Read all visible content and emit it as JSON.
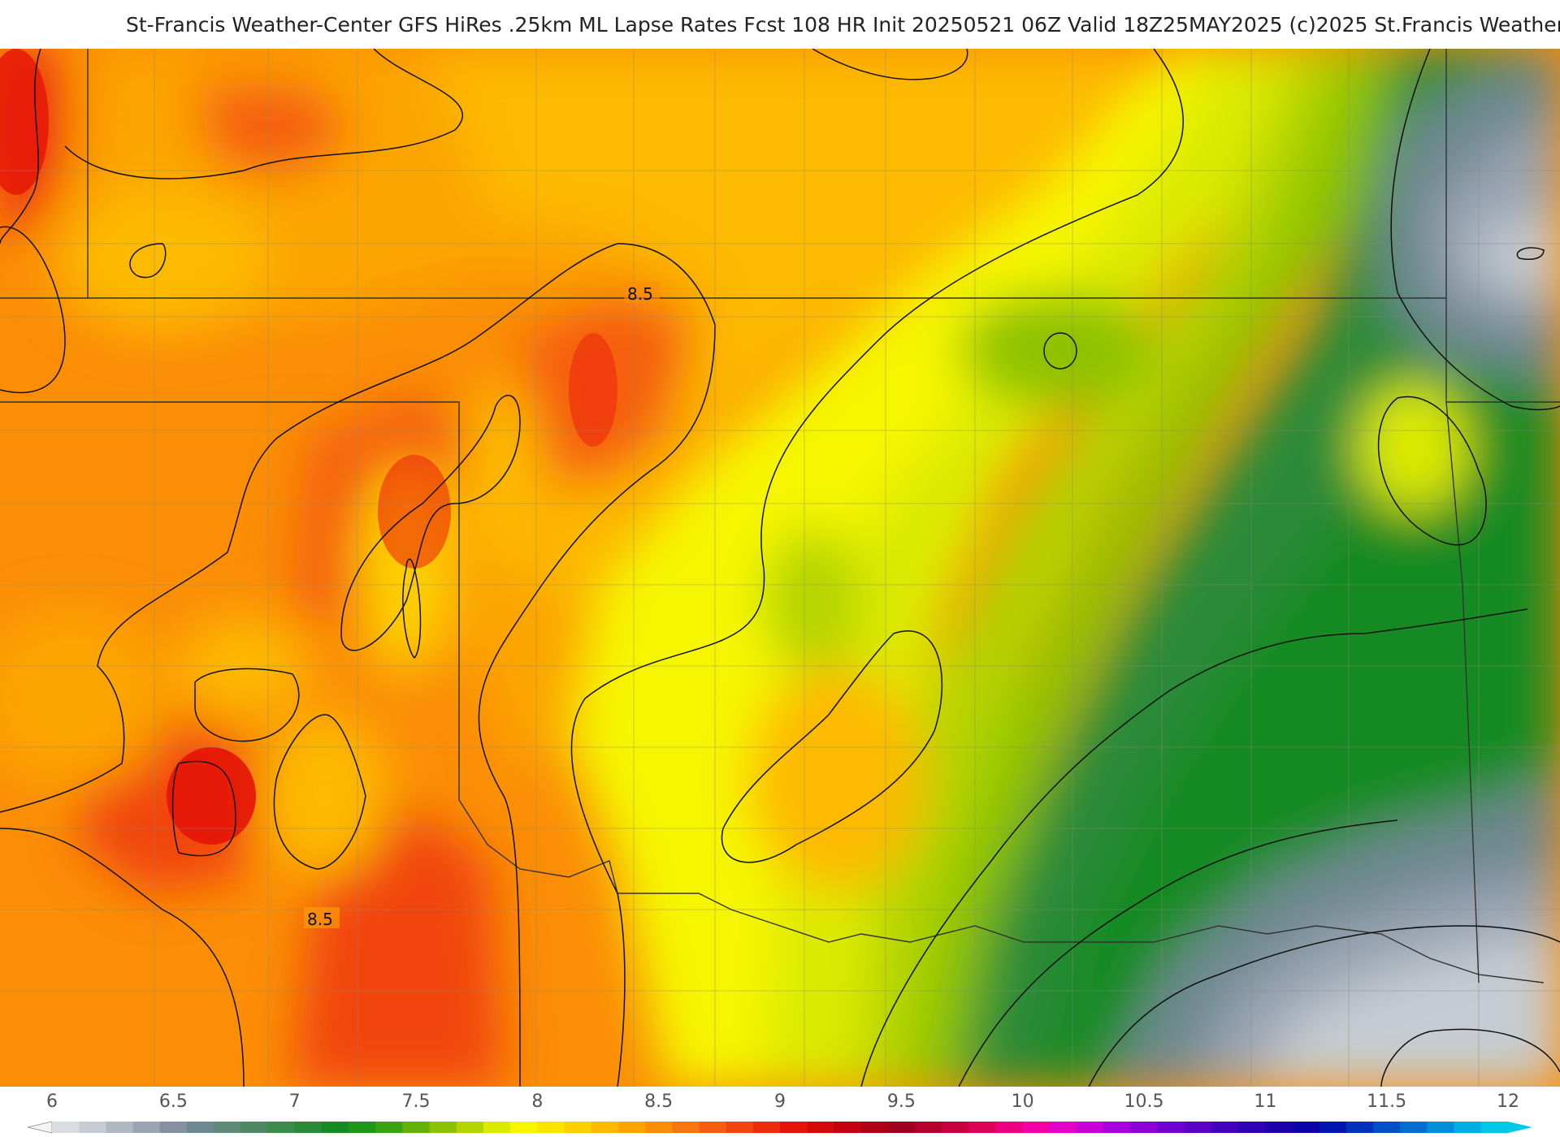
{
  "header": {
    "title": "St-Francis Weather-Center GFS HiRes .25km ML Lapse Rates  Fcst 108 HR Init 20250521 06Z  Valid 18Z25MAY2025    (c)2025 St.Francis Weather"
  },
  "map": {
    "contour_labels": [
      "8.5",
      "8.5"
    ]
  },
  "colorbar": {
    "tick_labels": [
      "6",
      "6.5",
      "7",
      "7.5",
      "8",
      "8.5",
      "9",
      "9.5",
      "10",
      "10.5",
      "11",
      "11.5",
      "12"
    ],
    "colors": [
      "#d9dde2",
      "#c6ccd3",
      "#b0b8c2",
      "#9aa4b2",
      "#8591a2",
      "#6e8890",
      "#5c8a76",
      "#4d8862",
      "#3c8a4c",
      "#2a8a38",
      "#158a22",
      "#1f961a",
      "#3aa212",
      "#62b20a",
      "#8cc204",
      "#b4d400",
      "#dcea00",
      "#f6f600",
      "#fbe400",
      "#fdd000",
      "#fdba00",
      "#fca400",
      "#fb8e06",
      "#f8760e",
      "#f55e10",
      "#f14410",
      "#ec2a0c",
      "#e61408",
      "#d40a0a",
      "#c40010",
      "#b00018",
      "#a0001e",
      "#b4002c",
      "#c8003e",
      "#dc0058",
      "#ec0080",
      "#f400a6",
      "#e400c8",
      "#c800d8",
      "#a800dc",
      "#8c00d8",
      "#7000d0",
      "#5a00c4",
      "#4400bc",
      "#3000b4",
      "#1e00aa",
      "#0c00a8",
      "#0014b0",
      "#0030bc",
      "#004ec6",
      "#006ed0",
      "#0090da",
      "#00aee2",
      "#00c8e6"
    ]
  }
}
